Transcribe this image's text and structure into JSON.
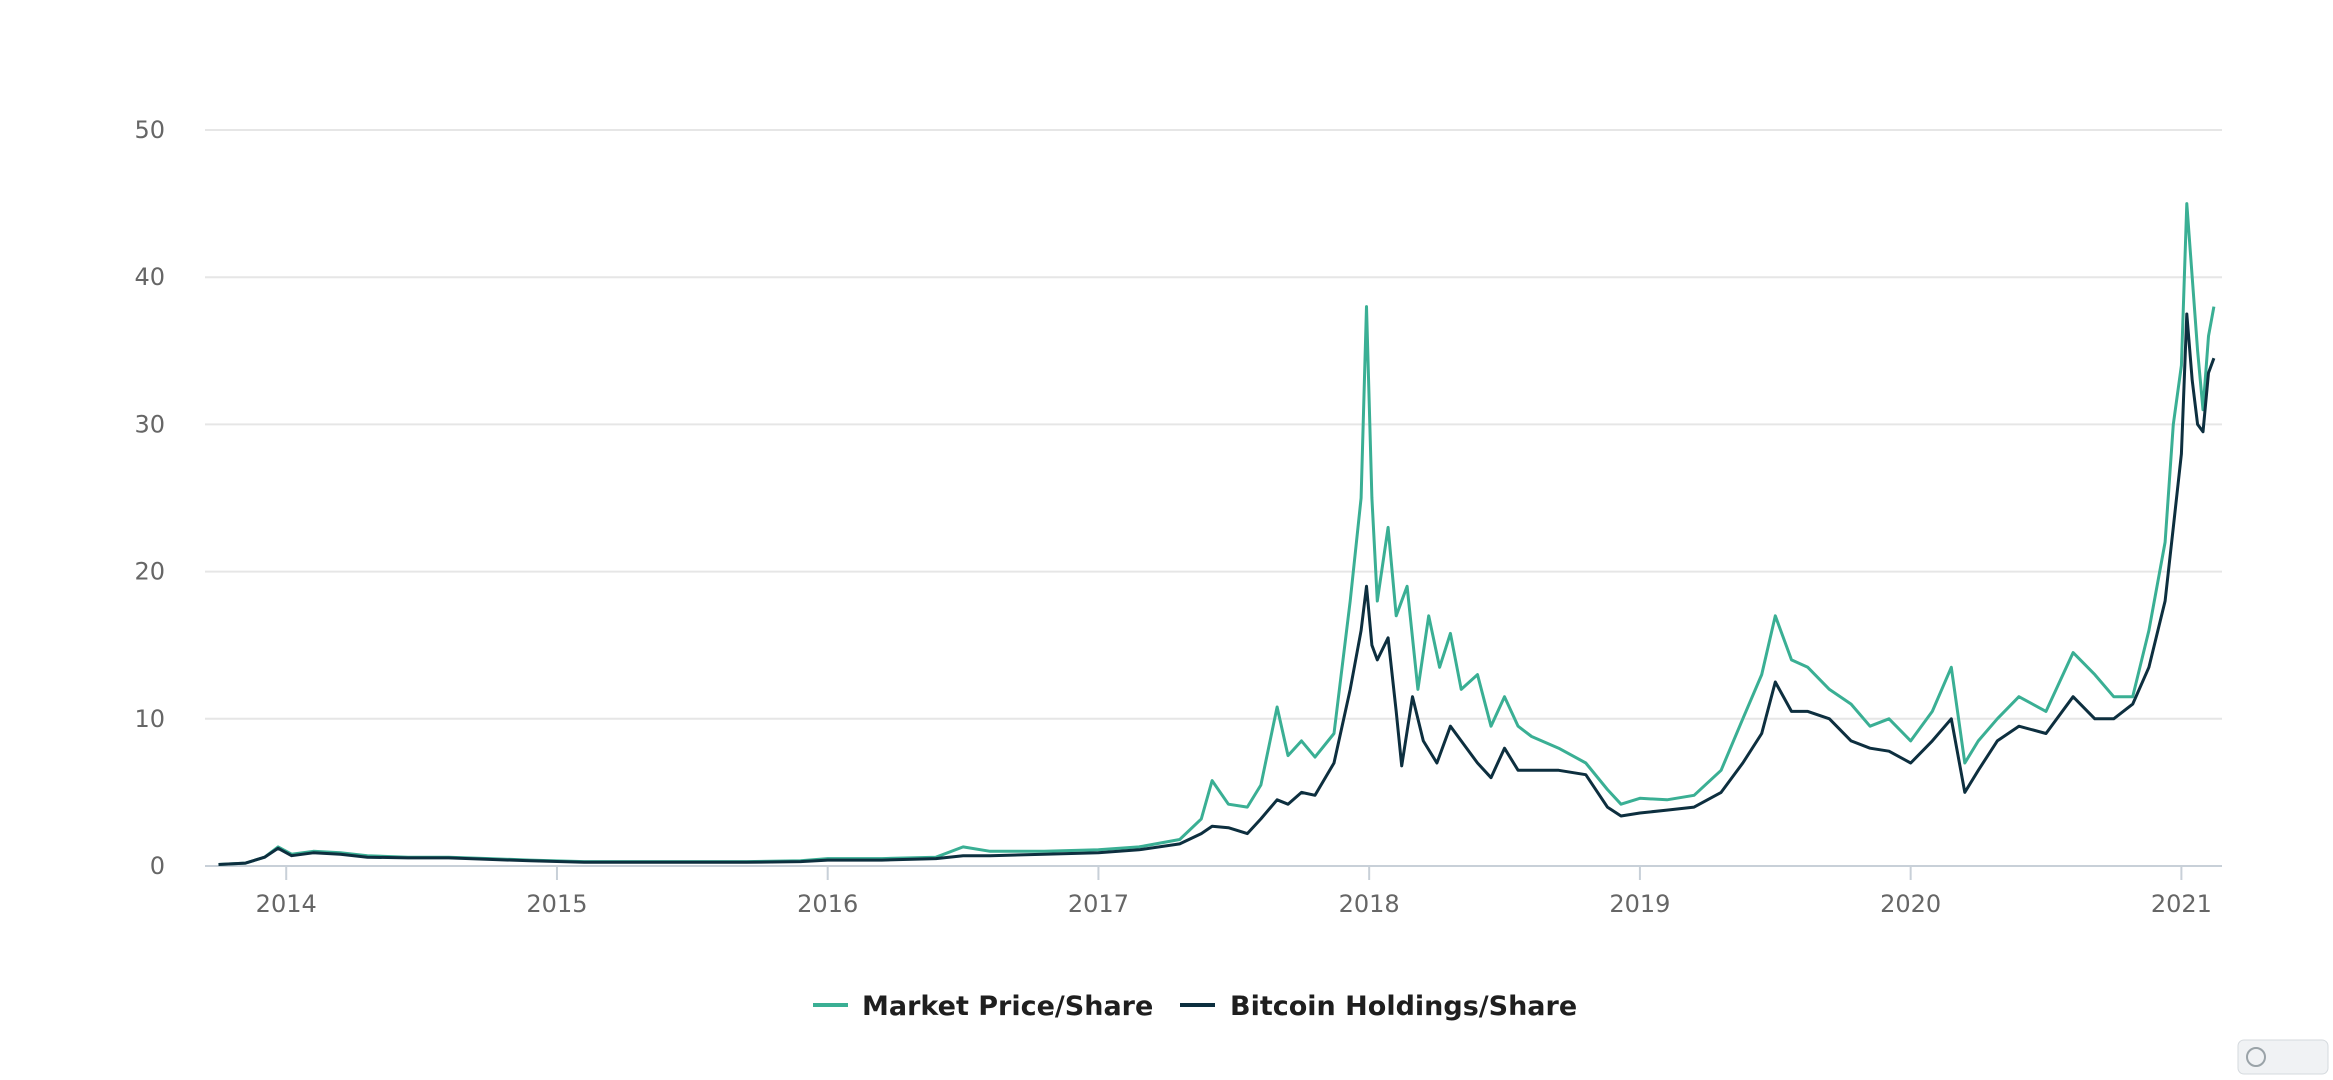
{
  "chart_data": {
    "type": "line",
    "title": "",
    "xlabel": "",
    "ylabel": "",
    "ylim": [
      0,
      50
    ],
    "xlim": [
      2013.7,
      2021.15
    ],
    "y_ticks": [
      "0",
      "10",
      "20",
      "30",
      "40",
      "50"
    ],
    "x_ticks": [
      {
        "value": 2014,
        "label": "2014"
      },
      {
        "value": 2015,
        "label": "2015"
      },
      {
        "value": 2016,
        "label": "2016"
      },
      {
        "value": 2017,
        "label": "2017"
      },
      {
        "value": 2018,
        "label": "2018"
      },
      {
        "value": 2019,
        "label": "2019"
      },
      {
        "value": 2020,
        "label": "2020"
      },
      {
        "value": 2021,
        "label": "2021"
      }
    ],
    "grid": true,
    "legend_position": "bottom-center",
    "series": [
      {
        "name": "Market Price/Share",
        "color": "#3aaf94",
        "points": [
          [
            2013.75,
            0.1
          ],
          [
            2013.85,
            0.2
          ],
          [
            2013.92,
            0.6
          ],
          [
            2013.97,
            1.3
          ],
          [
            2014.02,
            0.8
          ],
          [
            2014.1,
            1.0
          ],
          [
            2014.2,
            0.9
          ],
          [
            2014.3,
            0.7
          ],
          [
            2014.45,
            0.6
          ],
          [
            2014.6,
            0.6
          ],
          [
            2014.75,
            0.5
          ],
          [
            2014.9,
            0.4
          ],
          [
            2015.1,
            0.3
          ],
          [
            2015.3,
            0.3
          ],
          [
            2015.5,
            0.3
          ],
          [
            2015.7,
            0.3
          ],
          [
            2015.9,
            0.35
          ],
          [
            2016.0,
            0.5
          ],
          [
            2016.2,
            0.5
          ],
          [
            2016.4,
            0.6
          ],
          [
            2016.5,
            1.3
          ],
          [
            2016.6,
            1.0
          ],
          [
            2016.8,
            1.0
          ],
          [
            2017.0,
            1.1
          ],
          [
            2017.15,
            1.3
          ],
          [
            2017.3,
            1.8
          ],
          [
            2017.38,
            3.2
          ],
          [
            2017.42,
            5.8
          ],
          [
            2017.48,
            4.2
          ],
          [
            2017.55,
            4.0
          ],
          [
            2017.6,
            5.5
          ],
          [
            2017.66,
            10.8
          ],
          [
            2017.7,
            7.5
          ],
          [
            2017.75,
            8.5
          ],
          [
            2017.8,
            7.4
          ],
          [
            2017.87,
            9.0
          ],
          [
            2017.93,
            18.0
          ],
          [
            2017.97,
            25.0
          ],
          [
            2017.99,
            38.0
          ],
          [
            2018.01,
            25.0
          ],
          [
            2018.03,
            18.0
          ],
          [
            2018.07,
            23.0
          ],
          [
            2018.1,
            17.0
          ],
          [
            2018.14,
            19.0
          ],
          [
            2018.18,
            12.0
          ],
          [
            2018.22,
            17.0
          ],
          [
            2018.26,
            13.5
          ],
          [
            2018.3,
            15.8
          ],
          [
            2018.34,
            12.0
          ],
          [
            2018.4,
            13.0
          ],
          [
            2018.45,
            9.5
          ],
          [
            2018.5,
            11.5
          ],
          [
            2018.55,
            9.5
          ],
          [
            2018.6,
            8.8
          ],
          [
            2018.7,
            8.0
          ],
          [
            2018.8,
            7.0
          ],
          [
            2018.88,
            5.2
          ],
          [
            2018.93,
            4.2
          ],
          [
            2019.0,
            4.6
          ],
          [
            2019.1,
            4.5
          ],
          [
            2019.2,
            4.8
          ],
          [
            2019.3,
            6.5
          ],
          [
            2019.38,
            10.0
          ],
          [
            2019.45,
            13.0
          ],
          [
            2019.5,
            17.0
          ],
          [
            2019.56,
            14.0
          ],
          [
            2019.62,
            13.5
          ],
          [
            2019.7,
            12.0
          ],
          [
            2019.78,
            11.0
          ],
          [
            2019.85,
            9.5
          ],
          [
            2019.92,
            10.0
          ],
          [
            2020.0,
            8.5
          ],
          [
            2020.08,
            10.5
          ],
          [
            2020.15,
            13.5
          ],
          [
            2020.2,
            7.0
          ],
          [
            2020.25,
            8.5
          ],
          [
            2020.32,
            10.0
          ],
          [
            2020.4,
            11.5
          ],
          [
            2020.5,
            10.5
          ],
          [
            2020.6,
            14.5
          ],
          [
            2020.68,
            13.0
          ],
          [
            2020.75,
            11.5
          ],
          [
            2020.82,
            11.5
          ],
          [
            2020.88,
            16.0
          ],
          [
            2020.94,
            22.0
          ],
          [
            2020.97,
            30.0
          ],
          [
            2021.0,
            34.0
          ],
          [
            2021.02,
            45.0
          ],
          [
            2021.04,
            40.0
          ],
          [
            2021.06,
            35.0
          ],
          [
            2021.08,
            31.0
          ],
          [
            2021.1,
            36.0
          ],
          [
            2021.12,
            38.0
          ]
        ]
      },
      {
        "name": "Bitcoin Holdings/Share",
        "color": "#0d2f3f",
        "points": [
          [
            2013.75,
            0.1
          ],
          [
            2013.85,
            0.2
          ],
          [
            2013.92,
            0.6
          ],
          [
            2013.97,
            1.2
          ],
          [
            2014.02,
            0.7
          ],
          [
            2014.1,
            0.9
          ],
          [
            2014.2,
            0.8
          ],
          [
            2014.3,
            0.6
          ],
          [
            2014.45,
            0.55
          ],
          [
            2014.6,
            0.55
          ],
          [
            2014.75,
            0.45
          ],
          [
            2014.9,
            0.35
          ],
          [
            2015.1,
            0.25
          ],
          [
            2015.3,
            0.25
          ],
          [
            2015.5,
            0.25
          ],
          [
            2015.7,
            0.25
          ],
          [
            2015.9,
            0.3
          ],
          [
            2016.0,
            0.4
          ],
          [
            2016.2,
            0.4
          ],
          [
            2016.4,
            0.5
          ],
          [
            2016.5,
            0.7
          ],
          [
            2016.6,
            0.7
          ],
          [
            2016.8,
            0.8
          ],
          [
            2017.0,
            0.9
          ],
          [
            2017.15,
            1.1
          ],
          [
            2017.3,
            1.5
          ],
          [
            2017.38,
            2.2
          ],
          [
            2017.42,
            2.7
          ],
          [
            2017.48,
            2.6
          ],
          [
            2017.55,
            2.2
          ],
          [
            2017.6,
            3.2
          ],
          [
            2017.66,
            4.5
          ],
          [
            2017.7,
            4.2
          ],
          [
            2017.75,
            5.0
          ],
          [
            2017.8,
            4.8
          ],
          [
            2017.87,
            7.0
          ],
          [
            2017.93,
            12.0
          ],
          [
            2017.97,
            16.0
          ],
          [
            2017.99,
            19.0
          ],
          [
            2018.01,
            15.0
          ],
          [
            2018.03,
            14.0
          ],
          [
            2018.07,
            15.5
          ],
          [
            2018.1,
            10.5
          ],
          [
            2018.12,
            6.8
          ],
          [
            2018.16,
            11.5
          ],
          [
            2018.2,
            8.5
          ],
          [
            2018.25,
            7.0
          ],
          [
            2018.3,
            9.5
          ],
          [
            2018.34,
            8.5
          ],
          [
            2018.4,
            7.0
          ],
          [
            2018.45,
            6.0
          ],
          [
            2018.5,
            8.0
          ],
          [
            2018.55,
            6.5
          ],
          [
            2018.6,
            6.5
          ],
          [
            2018.7,
            6.5
          ],
          [
            2018.8,
            6.2
          ],
          [
            2018.88,
            4.0
          ],
          [
            2018.93,
            3.4
          ],
          [
            2019.0,
            3.6
          ],
          [
            2019.1,
            3.8
          ],
          [
            2019.2,
            4.0
          ],
          [
            2019.3,
            5.0
          ],
          [
            2019.38,
            7.0
          ],
          [
            2019.45,
            9.0
          ],
          [
            2019.5,
            12.5
          ],
          [
            2019.56,
            10.5
          ],
          [
            2019.62,
            10.5
          ],
          [
            2019.7,
            10.0
          ],
          [
            2019.78,
            8.5
          ],
          [
            2019.85,
            8.0
          ],
          [
            2019.92,
            7.8
          ],
          [
            2020.0,
            7.0
          ],
          [
            2020.08,
            8.5
          ],
          [
            2020.15,
            10.0
          ],
          [
            2020.2,
            5.0
          ],
          [
            2020.25,
            6.5
          ],
          [
            2020.32,
            8.5
          ],
          [
            2020.4,
            9.5
          ],
          [
            2020.5,
            9.0
          ],
          [
            2020.6,
            11.5
          ],
          [
            2020.68,
            10.0
          ],
          [
            2020.75,
            10.0
          ],
          [
            2020.82,
            11.0
          ],
          [
            2020.88,
            13.5
          ],
          [
            2020.94,
            18.0
          ],
          [
            2020.97,
            23.0
          ],
          [
            2021.0,
            28.0
          ],
          [
            2021.02,
            37.5
          ],
          [
            2021.04,
            33.0
          ],
          [
            2021.06,
            30.0
          ],
          [
            2021.08,
            29.5
          ],
          [
            2021.1,
            33.5
          ],
          [
            2021.12,
            34.5
          ]
        ]
      }
    ]
  }
}
